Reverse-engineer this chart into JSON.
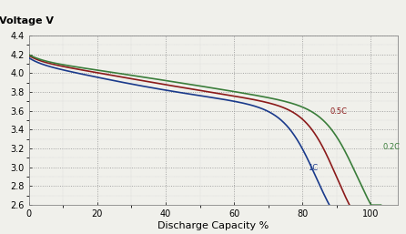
{
  "xlabel": "Discharge Capacity %",
  "ylabel": "Voltage V",
  "xlim": [
    0,
    108
  ],
  "ylim": [
    2.6,
    4.4
  ],
  "xticks": [
    0,
    20,
    40,
    60,
    80,
    100
  ],
  "yticks": [
    2.6,
    2.8,
    3.0,
    3.2,
    3.4,
    3.6,
    3.8,
    4.0,
    4.2,
    4.4
  ],
  "colors": {
    "0.2C": "#3a7d3a",
    "0.5C": "#8b1a1a",
    "1C": "#1a3a8b"
  },
  "label_positions": {
    "0.2C": [
      103.5,
      3.22
    ],
    "0.5C": [
      88.0,
      3.595
    ],
    "1C": [
      81.5,
      2.99
    ]
  },
  "background_color": "#f0f0eb",
  "grid_color": "#999999",
  "line_width": 1.2,
  "ylabel_fontsize": 8,
  "xlabel_fontsize": 8,
  "tick_fontsize": 7
}
